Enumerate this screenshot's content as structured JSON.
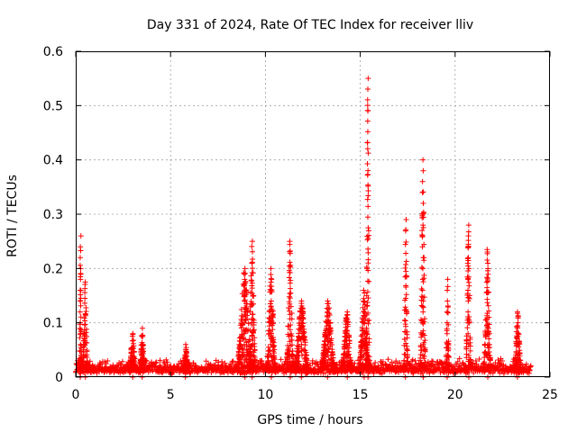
{
  "chart_data": {
    "type": "scatter",
    "title": "Day 331 of 2024, Rate Of TEC Index for receiver lliv",
    "xlabel": "GPS time / hours",
    "ylabel": "ROTI / TECUs",
    "xlim": [
      0,
      25
    ],
    "ylim": [
      0,
      0.6
    ],
    "xticks": [
      "0",
      "5",
      "10",
      "15",
      "20",
      "25"
    ],
    "yticks": [
      "0",
      "0.1",
      "0.2",
      "0.3",
      "0.4",
      "0.5",
      "0.6"
    ],
    "grid": true,
    "marker": "plus",
    "color": "#ff0000",
    "baseline": {
      "x_start": 0,
      "x_end": 24,
      "typical_max": 0.03
    },
    "bursts": [
      {
        "center": 0.25,
        "width": 0.06,
        "peak": 0.26
      },
      {
        "center": 0.5,
        "width": 0.15,
        "peak": 0.175
      },
      {
        "center": 3.0,
        "width": 0.2,
        "peak": 0.08
      },
      {
        "center": 3.5,
        "width": 0.15,
        "peak": 0.09
      },
      {
        "center": 5.8,
        "width": 0.15,
        "peak": 0.06
      },
      {
        "center": 8.9,
        "width": 0.45,
        "peak": 0.2
      },
      {
        "center": 9.3,
        "width": 0.2,
        "peak": 0.25
      },
      {
        "center": 10.3,
        "width": 0.25,
        "peak": 0.2
      },
      {
        "center": 11.3,
        "width": 0.2,
        "peak": 0.25
      },
      {
        "center": 11.9,
        "width": 0.4,
        "peak": 0.14
      },
      {
        "center": 13.3,
        "width": 0.4,
        "peak": 0.14
      },
      {
        "center": 14.3,
        "width": 0.3,
        "peak": 0.12
      },
      {
        "center": 15.4,
        "width": 0.1,
        "peak": 0.55
      },
      {
        "center": 15.2,
        "width": 0.3,
        "peak": 0.16
      },
      {
        "center": 17.4,
        "width": 0.12,
        "peak": 0.29
      },
      {
        "center": 18.3,
        "width": 0.15,
        "peak": 0.4
      },
      {
        "center": 19.6,
        "width": 0.1,
        "peak": 0.18
      },
      {
        "center": 20.7,
        "width": 0.15,
        "peak": 0.28
      },
      {
        "center": 21.7,
        "width": 0.2,
        "peak": 0.235
      },
      {
        "center": 23.3,
        "width": 0.2,
        "peak": 0.12
      }
    ]
  }
}
